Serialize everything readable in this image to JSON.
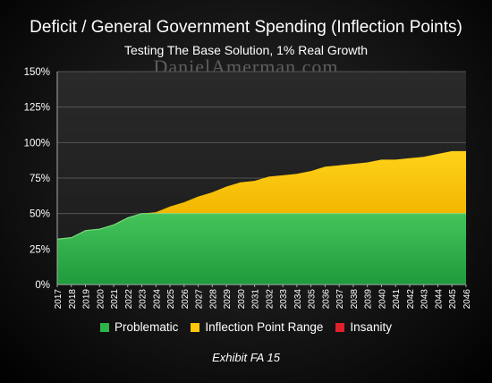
{
  "chart_data": {
    "type": "area",
    "title": "Deficit / General Government Spending (Inflection Points)",
    "subtitle": "Testing The Base Solution, 1% Real Growth",
    "watermark": "DanielAmerman.com",
    "x": [
      2017,
      2018,
      2019,
      2020,
      2021,
      2022,
      2023,
      2024,
      2025,
      2026,
      2027,
      2028,
      2029,
      2030,
      2031,
      2032,
      2033,
      2034,
      2035,
      2036,
      2037,
      2038,
      2039,
      2040,
      2041,
      2042,
      2043,
      2044,
      2045,
      2046
    ],
    "total": [
      32,
      33,
      38,
      39,
      42,
      47,
      50,
      51,
      55,
      58,
      62,
      65,
      69,
      72,
      73,
      76,
      77,
      78,
      80,
      83,
      84,
      85,
      86,
      88,
      88,
      89,
      90,
      92,
      94,
      94
    ],
    "series": [
      {
        "name": "Problematic",
        "color": "#2db54a"
      },
      {
        "name": "Inflection Point Range",
        "color": "#ffc80a"
      },
      {
        "name": "Insanity",
        "color": "#e0202a"
      }
    ],
    "bands": [
      0,
      50,
      100
    ],
    "yticks": [
      "0%",
      "25%",
      "50%",
      "75%",
      "100%",
      "125%",
      "150%"
    ],
    "ylim": [
      0,
      150
    ],
    "grid": true,
    "legend_position": "bottom",
    "caption": "Exhibit FA 15"
  }
}
